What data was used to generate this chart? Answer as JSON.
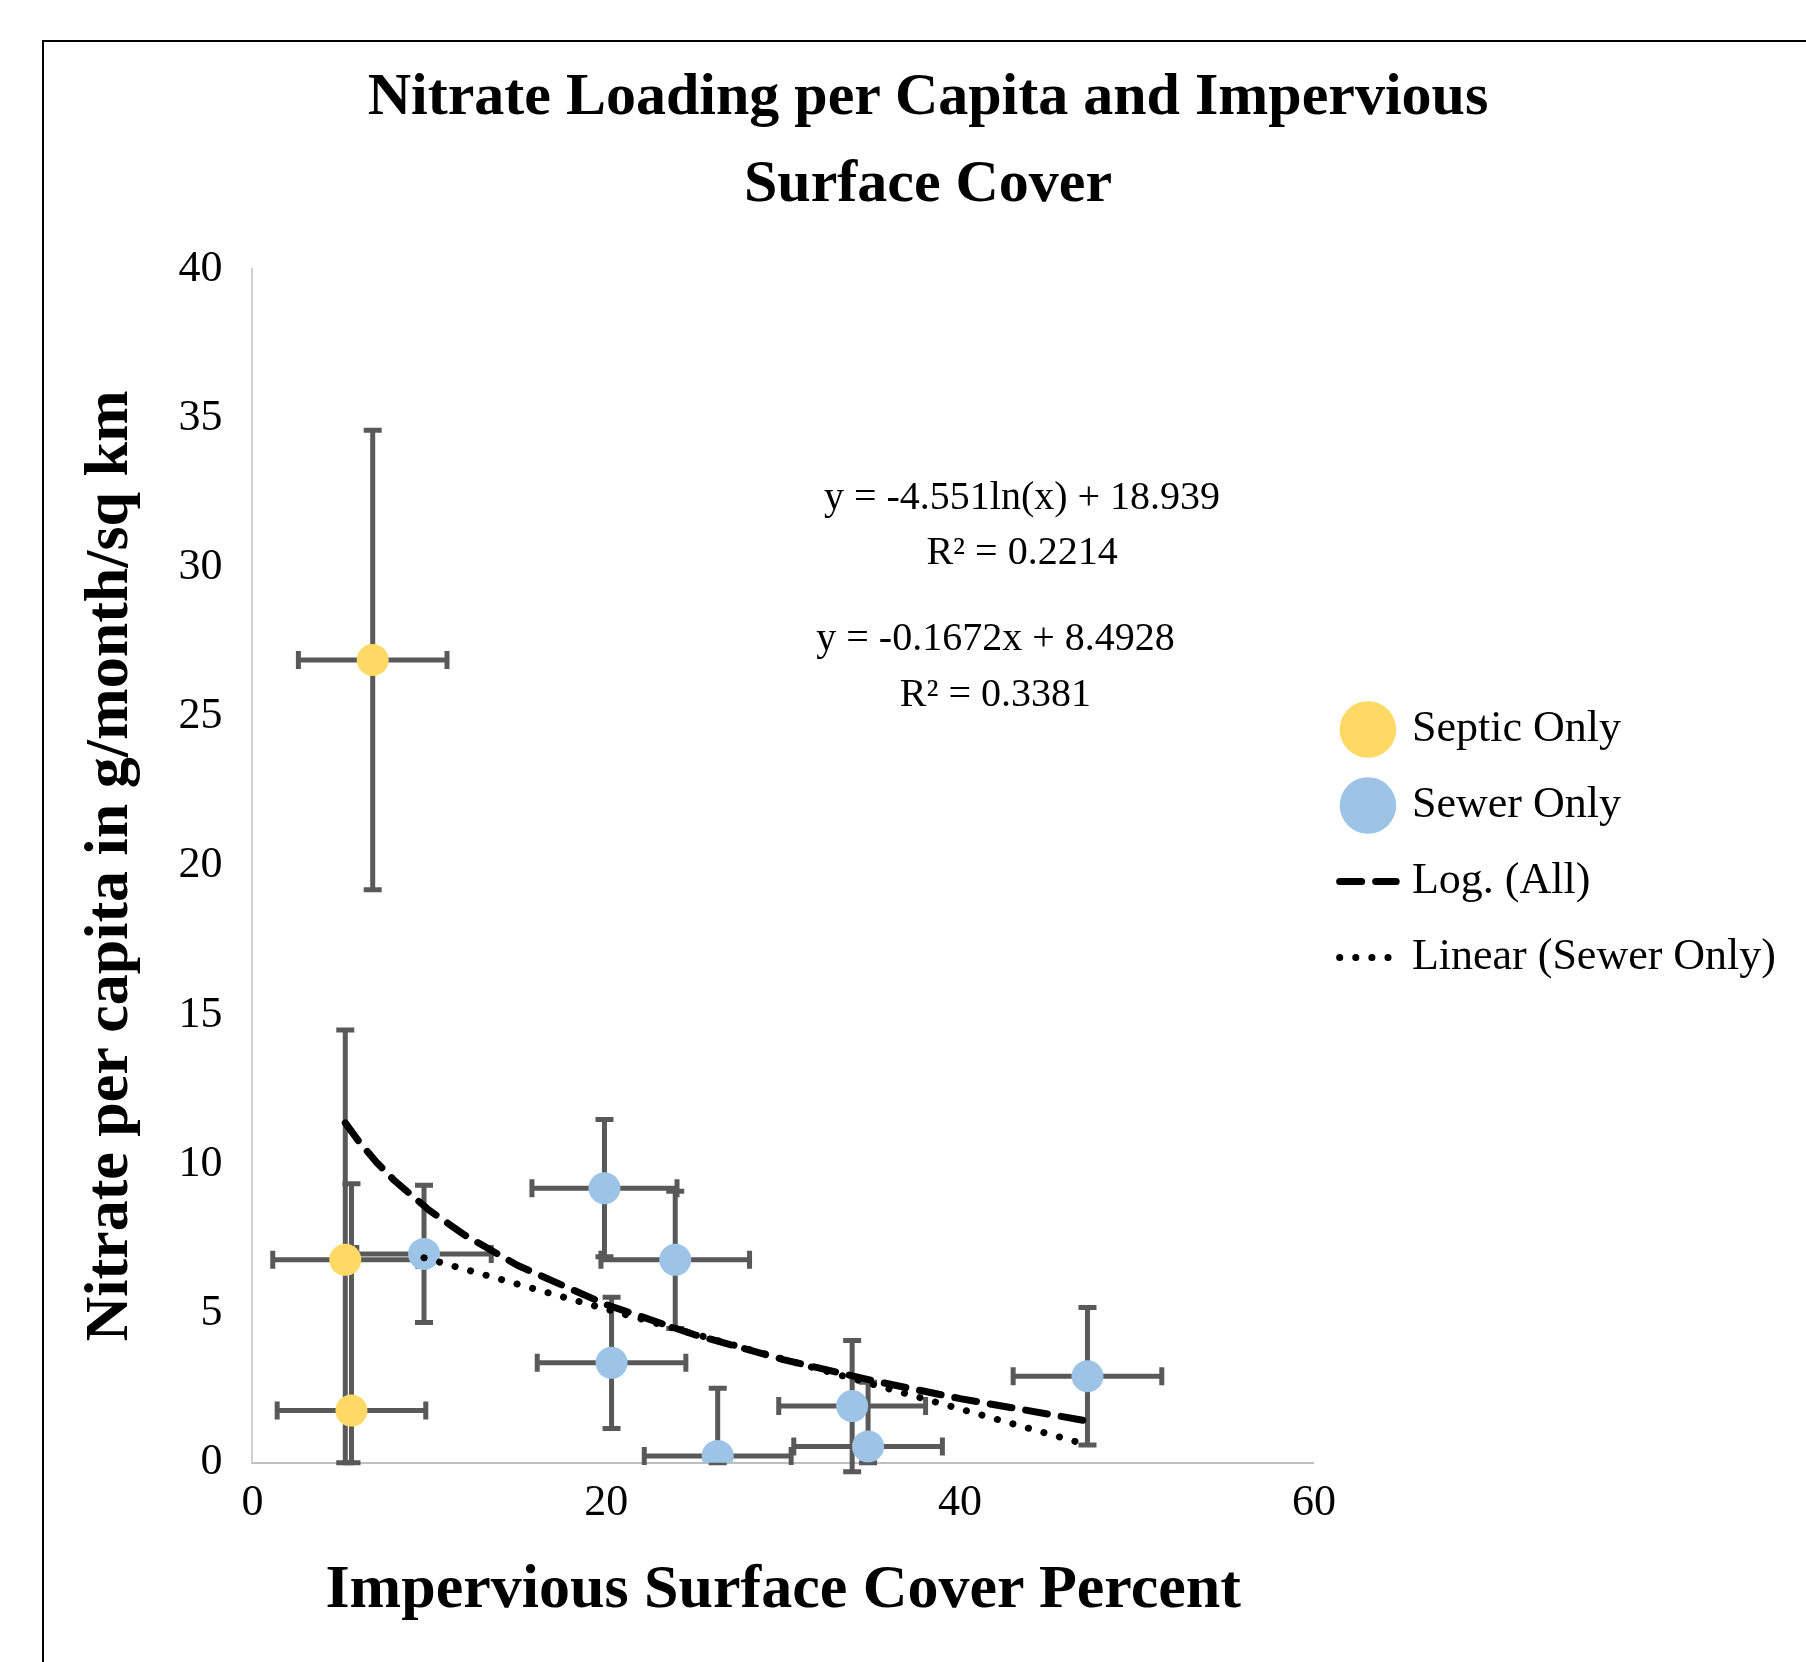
{
  "chart_data": {
    "type": "scatter",
    "title": "Nitrate Loading per Capita and Impervious Surface Cover",
    "xlabel": "Impervious Surface Cover Percent",
    "ylabel": "Nitrate per capita in g/month/sq km",
    "xlim": [
      0,
      60
    ],
    "xticks": [
      0,
      20,
      40,
      60
    ],
    "ylim": [
      0,
      40
    ],
    "yticks": [
      0,
      5,
      10,
      15,
      20,
      25,
      30,
      35,
      40
    ],
    "grid": false,
    "legend": "right",
    "marker": "circle",
    "series": [
      {
        "name": "Septic Only",
        "color": "#ffd966",
        "x": [
          6.8,
          5.25,
          5.6
        ],
        "values": [
          26.9,
          6.8,
          1.75
        ],
        "errors": [
          7.7,
          [
            0,
            14.5
          ],
          [
            0,
            9.35
          ]
        ],
        "xerrors": [
          4.2,
          4.1,
          4.2
        ]
      },
      {
        "name": "Sewer Only",
        "color": "#9dc3e6",
        "x": [
          9.7,
          19.9,
          23.9,
          20.3,
          26.3,
          33.9,
          34.8,
          47.2
        ],
        "values": [
          7.0,
          9.2,
          6.8,
          3.35,
          0.23,
          1.9,
          0.55,
          2.9
        ],
        "errors": [
          2.3,
          2.3,
          2.3,
          2.2,
          [
            0,
            2.5
          ],
          2.2,
          [
            0,
            2.7
          ],
          2.3
        ],
        "xerrors": [
          3.8,
          4.1,
          4.2,
          4.2,
          4.15,
          4.15,
          4.2,
          4.2
        ]
      },
      {
        "name": "Log. (All)",
        "type": "line",
        "color": "#000000",
        "line_style": "dashed",
        "marker": "none",
        "x": [
          5.25,
          6,
          7,
          8,
          10,
          12,
          15,
          20,
          25,
          30,
          35,
          40,
          47.2
        ],
        "values": [
          11.39,
          10.78,
          10.08,
          9.47,
          8.46,
          7.63,
          6.61,
          5.3,
          4.29,
          3.46,
          2.76,
          2.15,
          1.4
        ]
      },
      {
        "name": "Linear (Sewer Only)",
        "type": "line",
        "color": "#000000",
        "line_style": "dotted",
        "marker": "none",
        "x": [
          9.7,
          47.2
        ],
        "values": [
          6.87,
          0.6
        ]
      }
    ],
    "annotations": [
      "y = -4.551ln(x) + 18.939",
      "R² = 0.2214",
      "y = -0.1672x + 8.4928",
      "R² = 0.3381"
    ]
  }
}
